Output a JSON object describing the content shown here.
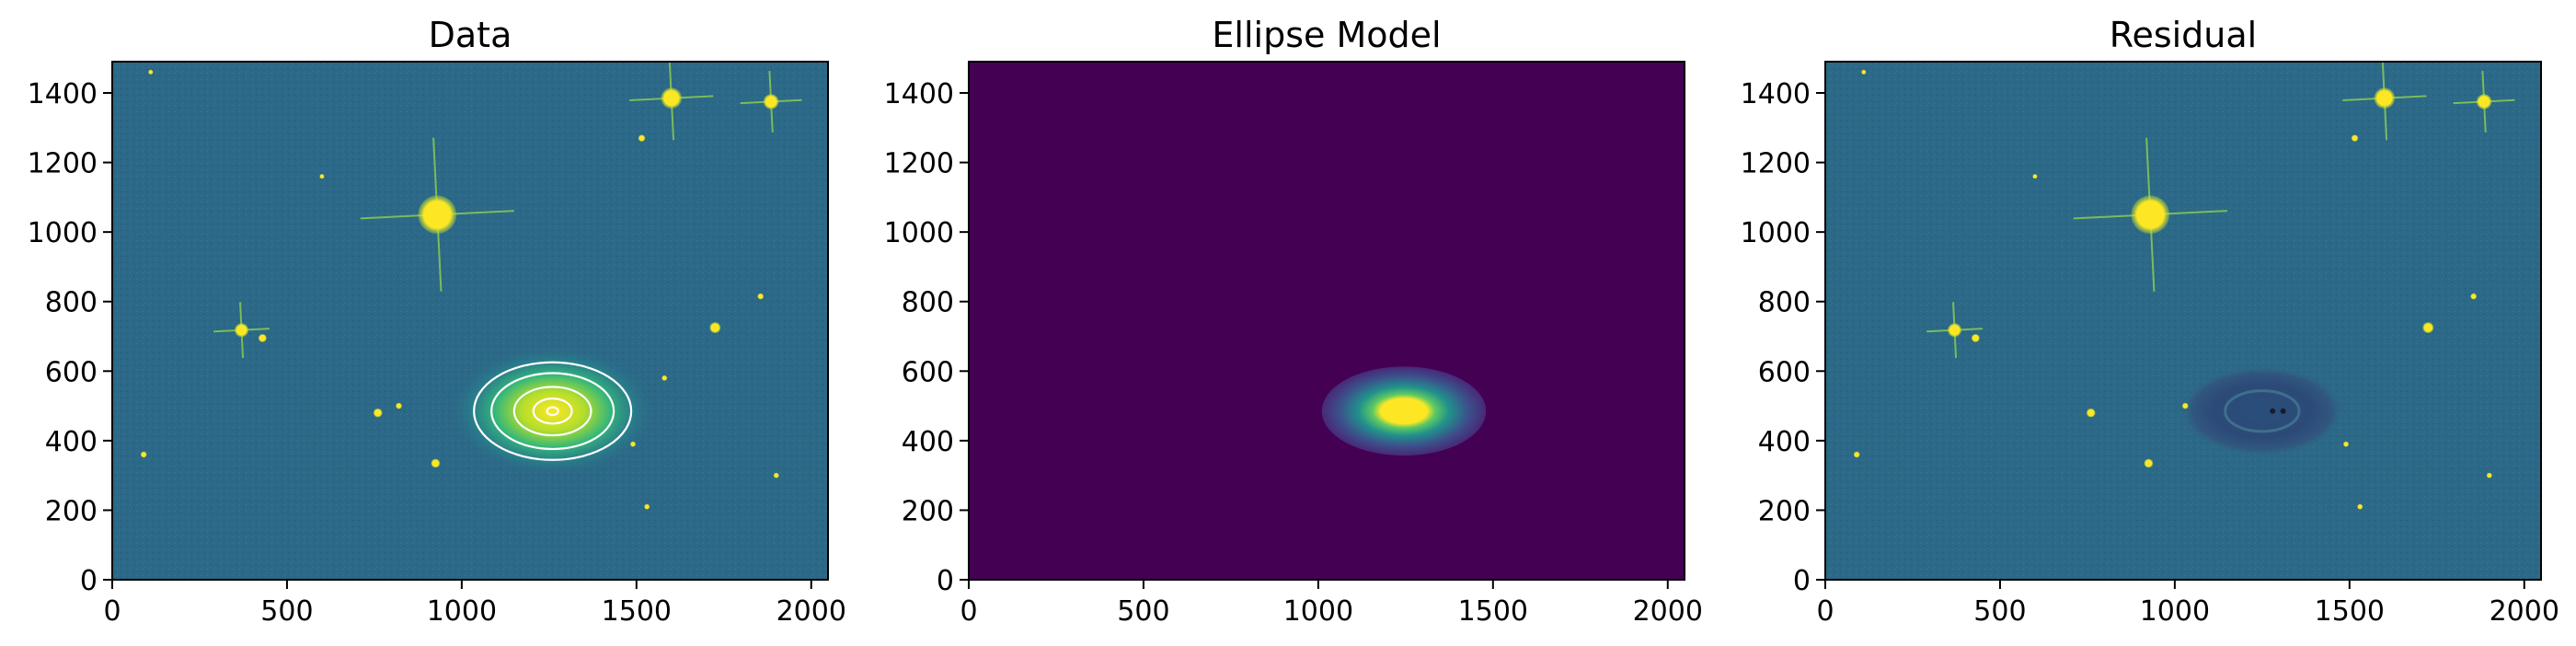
{
  "chart_data": [
    {
      "type": "heatmap",
      "title": "Data",
      "xlim": [
        0,
        2048
      ],
      "ylim": [
        0,
        1490
      ],
      "x_ticks": [
        0,
        500,
        1000,
        1500,
        2000
      ],
      "y_ticks": [
        0,
        200,
        400,
        600,
        800,
        1000,
        1200,
        1400
      ],
      "colormap": "viridis",
      "background": "#2d6a86",
      "stars": [
        {
          "x": 930,
          "y": 1050,
          "r": 55,
          "spikes": true
        },
        {
          "x": 1600,
          "y": 1385,
          "r": 30,
          "spikes": true
        },
        {
          "x": 1885,
          "y": 1375,
          "r": 22,
          "spikes": true
        },
        {
          "x": 370,
          "y": 718,
          "r": 20,
          "spikes": true
        },
        {
          "x": 430,
          "y": 695,
          "r": 12
        },
        {
          "x": 1725,
          "y": 725,
          "r": 16
        },
        {
          "x": 760,
          "y": 480,
          "r": 13
        },
        {
          "x": 925,
          "y": 335,
          "r": 13
        },
        {
          "x": 1855,
          "y": 815,
          "r": 9
        },
        {
          "x": 1515,
          "y": 1270,
          "r": 10
        },
        {
          "x": 1900,
          "y": 300,
          "r": 8
        },
        {
          "x": 820,
          "y": 500,
          "r": 9
        },
        {
          "x": 1580,
          "y": 580,
          "r": 8
        },
        {
          "x": 1490,
          "y": 390,
          "r": 8
        },
        {
          "x": 90,
          "y": 360,
          "r": 9
        },
        {
          "x": 110,
          "y": 1460,
          "r": 7
        },
        {
          "x": 1530,
          "y": 210,
          "r": 8
        },
        {
          "x": 600,
          "y": 1160,
          "r": 7
        }
      ],
      "galaxy": {
        "x": 1260,
        "y": 485,
        "rx": 300,
        "ry": 190
      },
      "isophotes": [
        {
          "x": 1260,
          "y": 485,
          "sma": 225,
          "eps": 0.38
        },
        {
          "x": 1260,
          "y": 485,
          "sma": 175,
          "eps": 0.38
        },
        {
          "x": 1260,
          "y": 485,
          "sma": 110,
          "eps": 0.37
        },
        {
          "x": 1260,
          "y": 485,
          "sma": 55,
          "eps": 0.35
        },
        {
          "x": 1260,
          "y": 485,
          "sma": 16,
          "eps": 0.3
        }
      ]
    },
    {
      "type": "heatmap",
      "title": "Ellipse Model",
      "xlim": [
        0,
        2048
      ],
      "ylim": [
        0,
        1490
      ],
      "x_ticks": [
        0,
        500,
        1000,
        1500,
        2000
      ],
      "y_ticks": [
        0,
        200,
        400,
        600,
        800,
        1000,
        1200,
        1400
      ],
      "colormap": "viridis",
      "background": "#440154",
      "model": {
        "x": 1245,
        "y": 485,
        "rx": 235,
        "ry": 128
      }
    },
    {
      "type": "heatmap",
      "title": "Residual",
      "xlim": [
        0,
        2048
      ],
      "ylim": [
        0,
        1490
      ],
      "x_ticks": [
        0,
        500,
        1000,
        1500,
        2000
      ],
      "y_ticks": [
        0,
        200,
        400,
        600,
        800,
        1000,
        1200,
        1400
      ],
      "colormap": "viridis",
      "background": "#2d6a86",
      "residual_ring": {
        "x": 1250,
        "y": 485,
        "rx": 235,
        "ry": 130
      },
      "stars": [
        {
          "x": 930,
          "y": 1050,
          "r": 55,
          "spikes": true
        },
        {
          "x": 1600,
          "y": 1385,
          "r": 30,
          "spikes": true
        },
        {
          "x": 1885,
          "y": 1375,
          "r": 22,
          "spikes": true
        },
        {
          "x": 370,
          "y": 718,
          "r": 20,
          "spikes": true
        },
        {
          "x": 430,
          "y": 695,
          "r": 12
        },
        {
          "x": 1725,
          "y": 725,
          "r": 16
        },
        {
          "x": 760,
          "y": 480,
          "r": 13
        },
        {
          "x": 925,
          "y": 335,
          "r": 13
        },
        {
          "x": 1855,
          "y": 815,
          "r": 9
        },
        {
          "x": 1515,
          "y": 1270,
          "r": 10
        },
        {
          "x": 1900,
          "y": 300,
          "r": 8
        },
        {
          "x": 1030,
          "y": 500,
          "r": 9
        },
        {
          "x": 1490,
          "y": 390,
          "r": 8
        },
        {
          "x": 90,
          "y": 360,
          "r": 9
        },
        {
          "x": 110,
          "y": 1460,
          "r": 7
        },
        {
          "x": 1530,
          "y": 210,
          "r": 8
        },
        {
          "x": 600,
          "y": 1160,
          "r": 7
        }
      ]
    }
  ]
}
